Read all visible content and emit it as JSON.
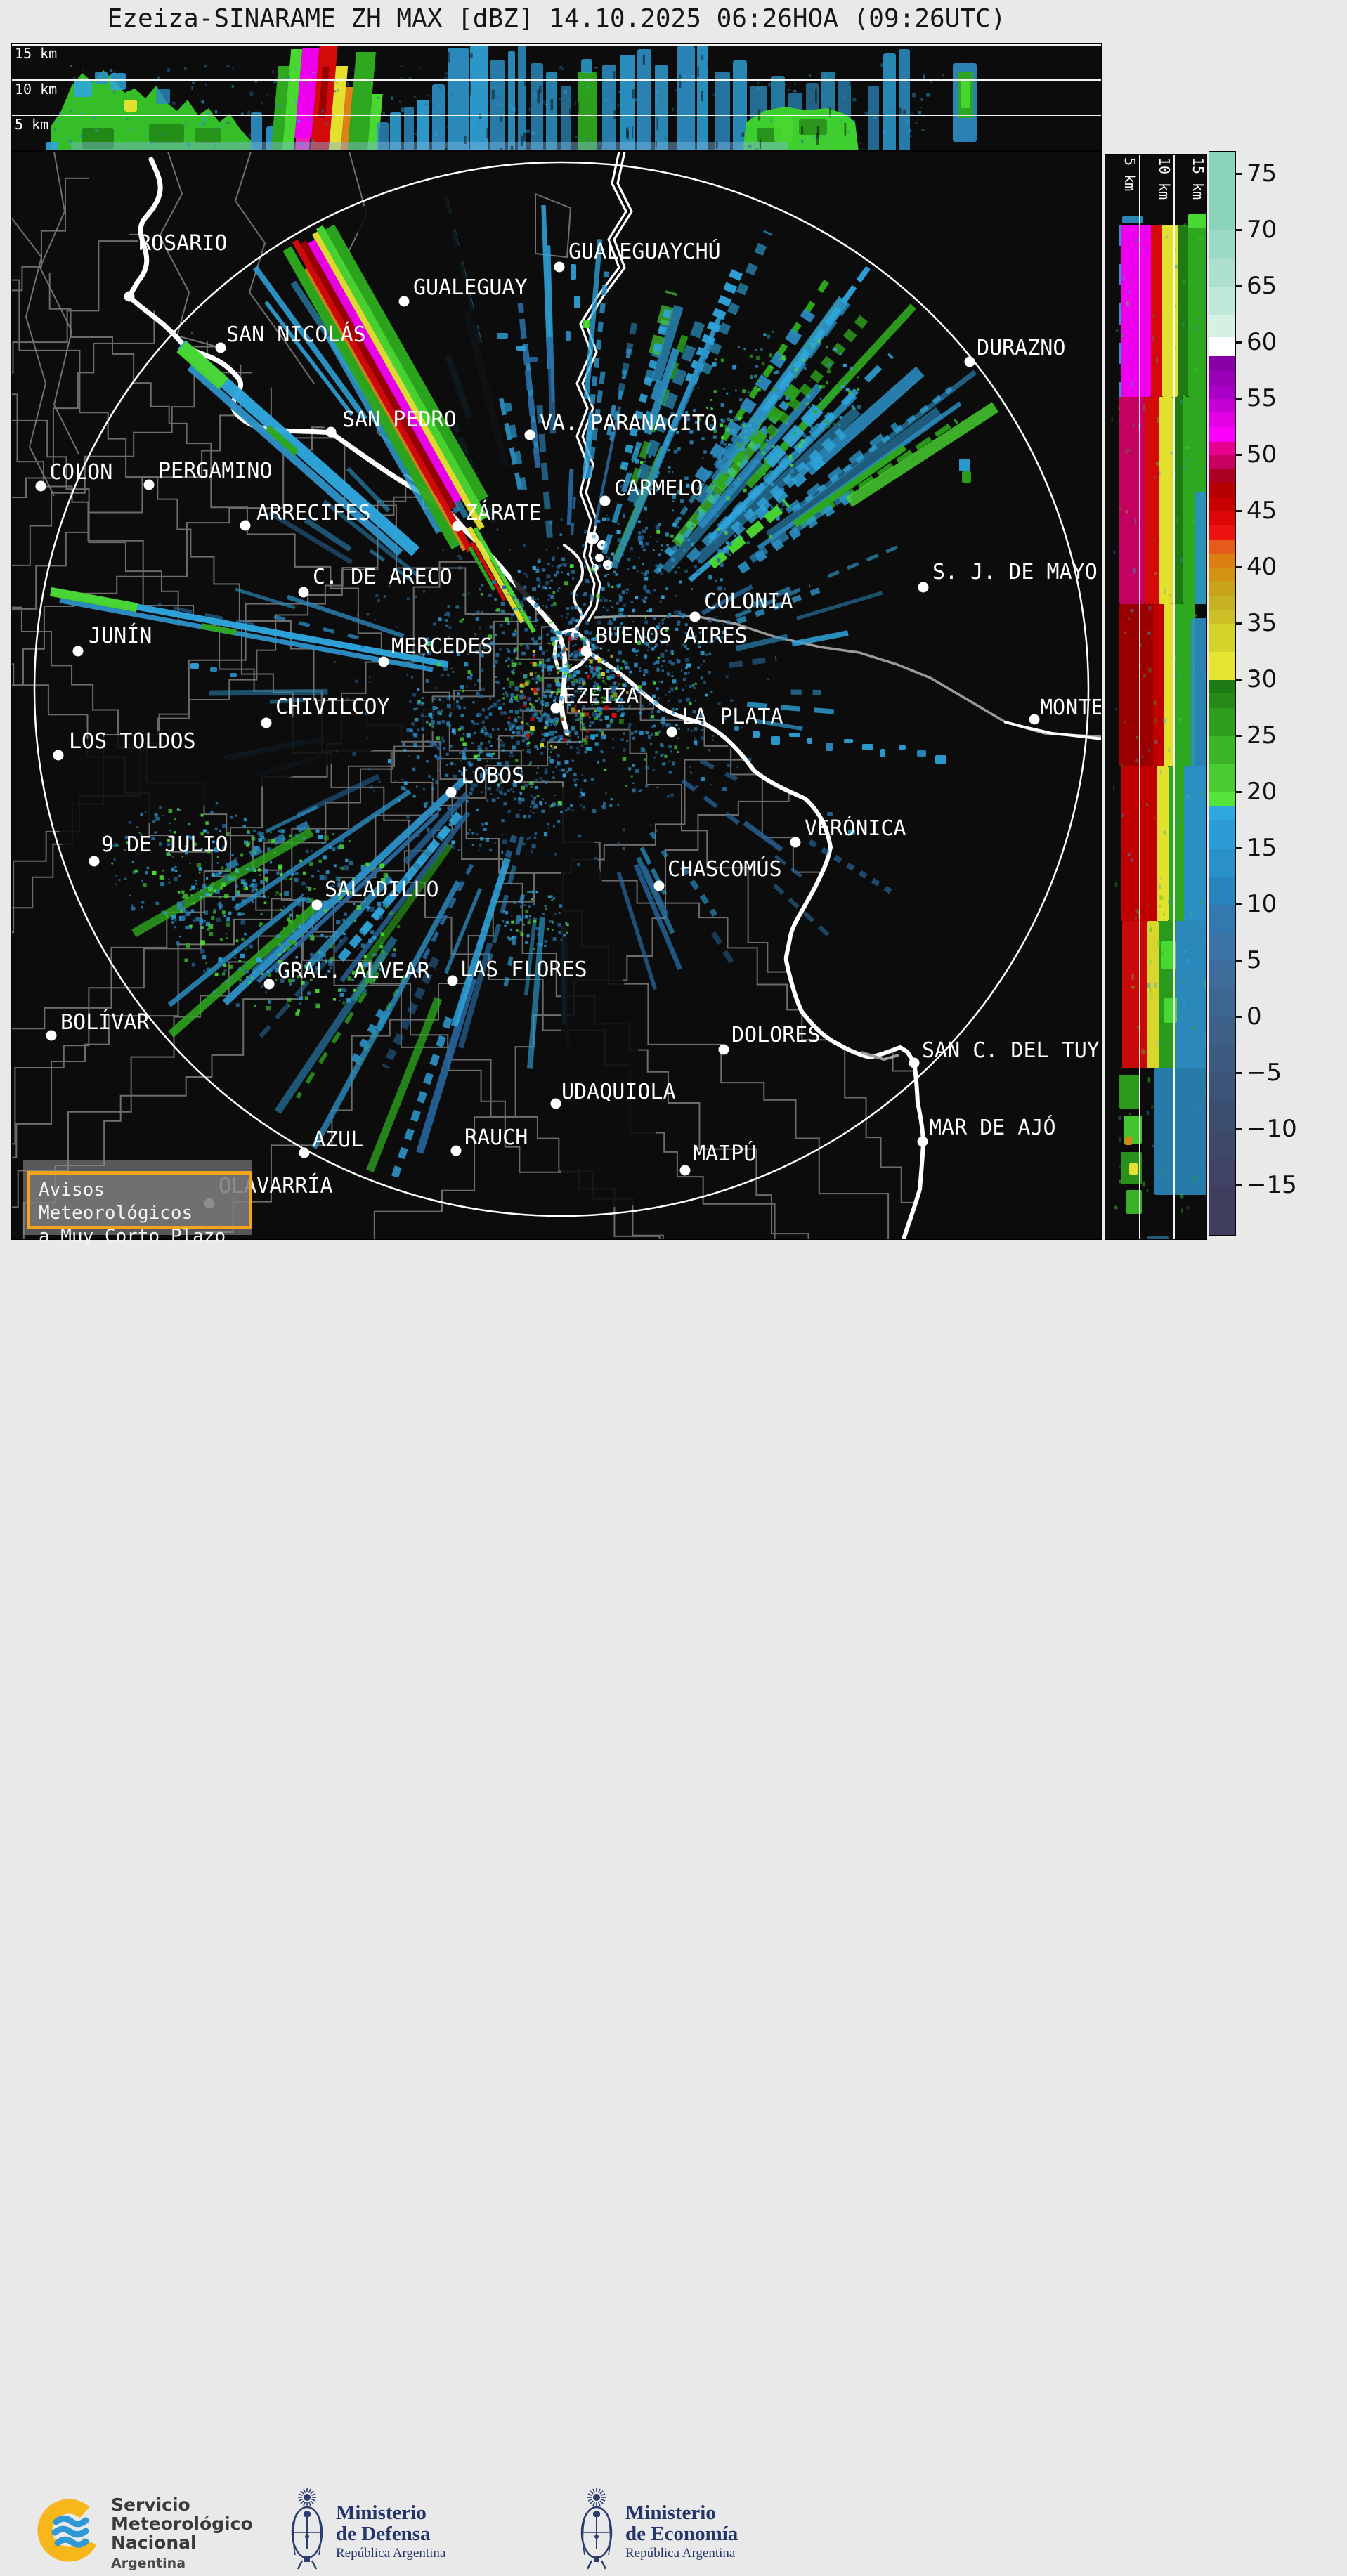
{
  "header": {
    "title": "Ezeiza-SINARAME ZH MAX [dBZ] 14.10.2025 06:26HOA (09:26UTC)"
  },
  "panels": {
    "top_xsec": {
      "height_labels": [
        "15 km",
        "10 km",
        "5 km"
      ]
    },
    "right_xsec": {
      "height_labels": [
        "5 km",
        "10 km",
        "15 km"
      ]
    }
  },
  "colorbar": {
    "unit": "dBZ",
    "ticks": [
      {
        "v": 75,
        "label": "75"
      },
      {
        "v": 70,
        "label": "70"
      },
      {
        "v": 65,
        "label": "65"
      },
      {
        "v": 60,
        "label": "60"
      },
      {
        "v": 55,
        "label": "55"
      },
      {
        "v": 50,
        "label": "50"
      },
      {
        "v": 45,
        "label": "45"
      },
      {
        "v": 40,
        "label": "40"
      },
      {
        "v": 35,
        "label": "35"
      },
      {
        "v": 30,
        "label": "30"
      },
      {
        "v": 25,
        "label": "25"
      },
      {
        "v": 20,
        "label": "20"
      },
      {
        "v": 15,
        "label": "15"
      },
      {
        "v": 10,
        "label": "10"
      },
      {
        "v": 5,
        "label": "5"
      },
      {
        "v": 0,
        "label": "0"
      },
      {
        "v": -5,
        "label": "−5"
      },
      {
        "v": -10,
        "label": "−10"
      },
      {
        "v": -15,
        "label": "−15"
      }
    ],
    "segments": [
      {
        "from": 77,
        "to": 70,
        "color": "#8BD3BA"
      },
      {
        "from": 70,
        "to": 67.5,
        "color": "#9DDAC5"
      },
      {
        "from": 67.5,
        "to": 65,
        "color": "#ADE1CE"
      },
      {
        "from": 65,
        "to": 62.5,
        "color": "#BFE9D9"
      },
      {
        "from": 62.5,
        "to": 60.5,
        "color": "#D4F1E4"
      },
      {
        "from": 60.5,
        "to": 58.8,
        "color": "#FFFFFF"
      },
      {
        "from": 58.8,
        "to": 57.5,
        "color": "#8A00A8"
      },
      {
        "from": 57.5,
        "to": 56.2,
        "color": "#9900B8"
      },
      {
        "from": 56.2,
        "to": 55,
        "color": "#A900C8"
      },
      {
        "from": 55,
        "to": 53.8,
        "color": "#C400D4"
      },
      {
        "from": 53.8,
        "to": 52.5,
        "color": "#E400E4"
      },
      {
        "from": 52.5,
        "to": 51.2,
        "color": "#FB00FB"
      },
      {
        "from": 51.2,
        "to": 50,
        "color": "#E6008E"
      },
      {
        "from": 50,
        "to": 48.8,
        "color": "#C80060"
      },
      {
        "from": 48.8,
        "to": 47.5,
        "color": "#AC0022"
      },
      {
        "from": 47.5,
        "to": 46.2,
        "color": "#B60000"
      },
      {
        "from": 46.2,
        "to": 45,
        "color": "#C80000"
      },
      {
        "from": 45,
        "to": 43.8,
        "color": "#DC0606"
      },
      {
        "from": 43.8,
        "to": 42.5,
        "color": "#EE1212"
      },
      {
        "from": 42.5,
        "to": 41.2,
        "color": "#E65A1A"
      },
      {
        "from": 41.2,
        "to": 40,
        "color": "#DC8014"
      },
      {
        "from": 40,
        "to": 38.8,
        "color": "#D29214"
      },
      {
        "from": 38.8,
        "to": 37.5,
        "color": "#C8A21A"
      },
      {
        "from": 37.5,
        "to": 36.2,
        "color": "#C6B222"
      },
      {
        "from": 36.2,
        "to": 35,
        "color": "#CCC026"
      },
      {
        "from": 35,
        "to": 32.5,
        "color": "#D6D22C"
      },
      {
        "from": 32.5,
        "to": 30,
        "color": "#E8E434"
      },
      {
        "from": 30,
        "to": 28.8,
        "color": "#1E7A12"
      },
      {
        "from": 28.8,
        "to": 27.5,
        "color": "#268A16"
      },
      {
        "from": 27.5,
        "to": 25,
        "color": "#2F9E1E"
      },
      {
        "from": 25,
        "to": 22.5,
        "color": "#3BB428"
      },
      {
        "from": 22.5,
        "to": 20,
        "color": "#48CC30"
      },
      {
        "from": 20,
        "to": 18.8,
        "color": "#55E43A"
      },
      {
        "from": 18.8,
        "to": 17.5,
        "color": "#2FA8E0"
      },
      {
        "from": 17.5,
        "to": 15,
        "color": "#2C9CD4"
      },
      {
        "from": 15,
        "to": 12.5,
        "color": "#2A90C8"
      },
      {
        "from": 12.5,
        "to": 10,
        "color": "#2884BC"
      },
      {
        "from": 10,
        "to": 7.5,
        "color": "#3479AE"
      },
      {
        "from": 7.5,
        "to": 5,
        "color": "#3B73A4"
      },
      {
        "from": 5,
        "to": 2.5,
        "color": "#3D6C9A"
      },
      {
        "from": 2.5,
        "to": 0,
        "color": "#3D6690"
      },
      {
        "from": 0,
        "to": -2.5,
        "color": "#3C6088"
      },
      {
        "from": -2.5,
        "to": -5,
        "color": "#3C5A80"
      },
      {
        "from": -5,
        "to": -7.5,
        "color": "#3C5478"
      },
      {
        "from": -7.5,
        "to": -10,
        "color": "#3C4E70"
      },
      {
        "from": -10,
        "to": -12.5,
        "color": "#3E496A"
      },
      {
        "from": -12.5,
        "to": -15,
        "color": "#3F4464"
      },
      {
        "from": -15,
        "to": -19.4,
        "color": "#403E5E"
      }
    ]
  },
  "map": {
    "cities": [
      {
        "name": "ROSARIO",
        "dot": [
          183,
          421
        ],
        "label": [
          196,
          330
        ]
      },
      {
        "name": "SAN NICOLÁS",
        "dot": [
          313,
          494
        ],
        "label": [
          321,
          460
        ]
      },
      {
        "name": "GUALEGUAY",
        "dot": [
          574,
          428
        ],
        "label": [
          587,
          393
        ]
      },
      {
        "name": "GUALEGUAYCHÚ",
        "dot": [
          795,
          379
        ],
        "label": [
          808,
          342
        ]
      },
      {
        "name": "DURAZNO",
        "dot": [
          1379,
          514
        ],
        "label": [
          1389,
          479
        ]
      },
      {
        "name": "SAN PEDRO",
        "dot": [
          470,
          614
        ],
        "label": [
          486,
          581
        ]
      },
      {
        "name": "VA. PARANACITO",
        "dot": [
          753,
          618
        ],
        "label": [
          767,
          586
        ]
      },
      {
        "name": "COLON",
        "dot": [
          57,
          691
        ],
        "label": [
          69,
          656
        ]
      },
      {
        "name": "PERGAMINO",
        "dot": [
          211,
          689
        ],
        "label": [
          224,
          654
        ]
      },
      {
        "name": "CARMELO",
        "dot": [
          860,
          712
        ],
        "label": [
          873,
          679
        ]
      },
      {
        "name": "ARRECIFES",
        "dot": [
          348,
          747
        ],
        "label": [
          364,
          714
        ]
      },
      {
        "name": "ZÁRATE",
        "dot": [
          650,
          748
        ],
        "label": [
          661,
          714
        ]
      },
      {
        "name": "C. DE ARECO",
        "dot": [
          431,
          842
        ],
        "label": [
          444,
          805
        ]
      },
      {
        "name": "S. J. DE MAYO",
        "dot": [
          1313,
          835
        ],
        "label": [
          1326,
          798
        ]
      },
      {
        "name": "COLONIA",
        "dot": [
          988,
          877
        ],
        "label": [
          1001,
          840
        ]
      },
      {
        "name": "JUNÍN",
        "dot": [
          110,
          926
        ],
        "label": [
          125,
          889
        ]
      },
      {
        "name": "BUENOS AIRES",
        "dot": [
          833,
          926
        ],
        "label": [
          846,
          889
        ]
      },
      {
        "name": "MERCEDES",
        "dot": [
          545,
          941
        ],
        "label": [
          556,
          904
        ]
      },
      {
        "name": "EZEIZA",
        "dot": [
          790,
          1007
        ],
        "label": [
          800,
          975
        ]
      },
      {
        "name": "CHIVILCOY",
        "dot": [
          378,
          1028
        ],
        "label": [
          391,
          990
        ]
      },
      {
        "name": "LA PLATA",
        "dot": [
          955,
          1041
        ],
        "label": [
          969,
          1004
        ]
      },
      {
        "name": "MONTEVIDEO",
        "dot": [
          1471,
          1023
        ],
        "label": [
          1479,
          991
        ]
      },
      {
        "name": "LOS TOLDOS",
        "dot": [
          82,
          1074
        ],
        "label": [
          97,
          1039
        ]
      },
      {
        "name": "LOBOS",
        "dot": [
          641,
          1127
        ],
        "label": [
          655,
          1088
        ]
      },
      {
        "name": "VERÓNICA",
        "dot": [
          1131,
          1198
        ],
        "label": [
          1144,
          1163
        ]
      },
      {
        "name": "9 DE JULIO",
        "dot": [
          133,
          1225
        ],
        "label": [
          143,
          1186
        ]
      },
      {
        "name": "CHASCOMÚS",
        "dot": [
          937,
          1260
        ],
        "label": [
          949,
          1221
        ]
      },
      {
        "name": "SALADILLO",
        "dot": [
          450,
          1287
        ],
        "label": [
          461,
          1250
        ]
      },
      {
        "name": "GRAL. ALVEAR",
        "dot": [
          382,
          1400
        ],
        "label": [
          394,
          1366
        ]
      },
      {
        "name": "LAS FLORES",
        "dot": [
          643,
          1395
        ],
        "label": [
          654,
          1364
        ]
      },
      {
        "name": "BOLÍVAR",
        "dot": [
          72,
          1473
        ],
        "label": [
          85,
          1439
        ]
      },
      {
        "name": "DOLORES",
        "dot": [
          1029,
          1493
        ],
        "label": [
          1040,
          1457
        ]
      },
      {
        "name": "SAN C. DEL TUYÚ",
        "dot": [
          1300,
          1512
        ],
        "label": [
          1311,
          1479
        ]
      },
      {
        "name": "UDAQUIOLA",
        "dot": [
          790,
          1570
        ],
        "label": [
          798,
          1538
        ]
      },
      {
        "name": "MAR DE AJÓ",
        "dot": [
          1312,
          1624
        ],
        "label": [
          1321,
          1589
        ]
      },
      {
        "name": "RAUCH",
        "dot": [
          648,
          1637
        ],
        "label": [
          660,
          1603
        ]
      },
      {
        "name": "AZUL",
        "dot": [
          432,
          1640
        ],
        "label": [
          444,
          1606
        ]
      },
      {
        "name": "MAIPÚ",
        "dot": [
          974,
          1665
        ],
        "label": [
          985,
          1626
        ]
      },
      {
        "name": "OLAVARRÍA",
        "dot": [
          297,
          1712
        ],
        "label": [
          310,
          1672
        ]
      }
    ]
  },
  "alert_box": {
    "line1": "Avisos Meteorológicos",
    "line2": "a Muy Corto Plazo"
  },
  "footer": {
    "smn": {
      "line1": "Servicio",
      "line2": "Meteorológico",
      "line3": "Nacional",
      "line4": "Argentina"
    },
    "defensa": {
      "line1": "Ministerio",
      "line2": "de Defensa",
      "line3": "República Argentina"
    },
    "economia": {
      "line1": "Ministerio",
      "line2": "de Economía",
      "line3": "República Argentina"
    }
  },
  "colors": {
    "accent_orange": "#F2A51C",
    "panel_bg": "#0C0C0C",
    "page_bg": "#E9E9E9",
    "boundary_gray": "#7A7A7A",
    "water_white": "#FFFFFF",
    "navy_logo": "#24356B",
    "smn_yellow": "#F7B619",
    "smn_blue": "#2E99D5"
  }
}
